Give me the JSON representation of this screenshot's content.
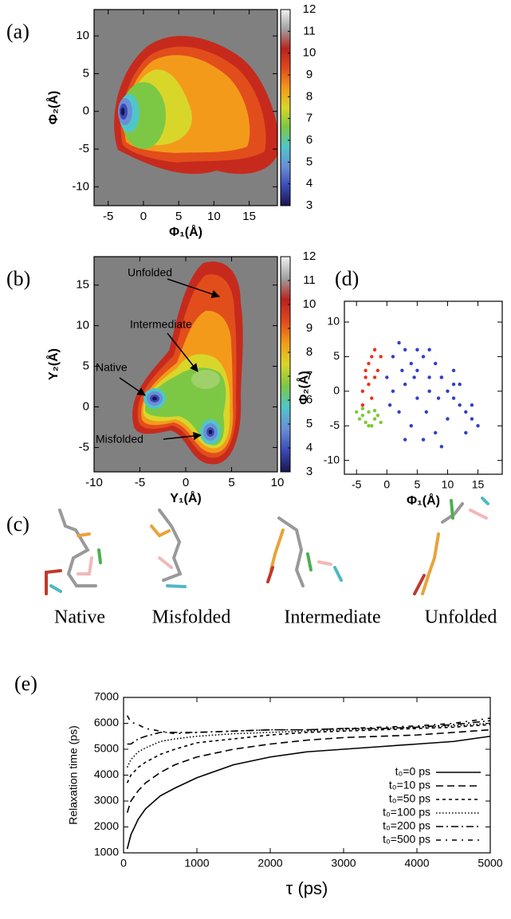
{
  "panel_labels": [
    "(a)",
    "(b)",
    "(c)",
    "(d)",
    "(e)"
  ],
  "structures": {
    "labels": [
      "Native",
      "Misfolded",
      "Intermediate",
      "Unfolded"
    ]
  },
  "chart_data": [
    {
      "type": "contour",
      "xlabel": "Φ₁(Å)",
      "ylabel": "Φ₂(Å)",
      "xlim": [
        -7,
        19
      ],
      "ylim": [
        -12.5,
        13.5
      ],
      "xticks": [
        -5,
        0,
        5,
        10,
        15
      ],
      "yticks": [
        -10,
        -5,
        0,
        5,
        10
      ],
      "background": "#808080",
      "colorbar": {
        "clim": [
          3,
          12
        ],
        "ticks": [
          3,
          4,
          5,
          6,
          7,
          8,
          9,
          10,
          11,
          12
        ],
        "colors": [
          "#1a1450",
          "#3b4bb5",
          "#6a8fd6",
          "#4fc6c9",
          "#7cc844",
          "#d9d62a",
          "#f39a1b",
          "#e04a1d",
          "#b8231e",
          "#a0a0a0",
          "#f2f2f2"
        ]
      }
    },
    {
      "type": "contour",
      "xlabel": "Y₁(Å)",
      "ylabel": "Y₂(Å)",
      "xlim": [
        -10,
        10
      ],
      "ylim": [
        -8,
        18.5
      ],
      "xticks": [
        -10,
        -5,
        0,
        5,
        10
      ],
      "yticks": [
        -5,
        0,
        5,
        10,
        15
      ],
      "background": "#808080",
      "annotations": [
        "Unfolded",
        "Intermediate",
        "Native",
        "Misfolded"
      ],
      "colorbar": {
        "clim": [
          3,
          12
        ],
        "ticks": [
          3,
          4,
          5,
          6,
          7,
          8,
          9,
          10,
          11,
          12
        ],
        "colors": [
          "#1a1450",
          "#3b4bb5",
          "#6a8fd6",
          "#4fc6c9",
          "#7cc844",
          "#d9d62a",
          "#f39a1b",
          "#e04a1d",
          "#b8231e",
          "#a0a0a0",
          "#f2f2f2"
        ]
      }
    },
    {
      "type": "scatter",
      "xlabel": "Φ₁(Å)",
      "ylabel": "Φ₂(Å)",
      "xlim": [
        -7,
        19
      ],
      "ylim": [
        -12,
        13
      ],
      "xticks": [
        -5,
        0,
        5,
        10,
        15
      ],
      "yticks": [
        -10,
        -5,
        0,
        5,
        10
      ],
      "series": [
        {
          "color": "#2f3fc8",
          "x": [
            0,
            1,
            2,
            3,
            4,
            5,
            6,
            7,
            8,
            9,
            10,
            11,
            12,
            13,
            14,
            15,
            2,
            4,
            6,
            8,
            10,
            1,
            3,
            5,
            7,
            9,
            11,
            0.5,
            2.5,
            4.5,
            6.5,
            8.5,
            12,
            14,
            3,
            5,
            7,
            9,
            11,
            13
          ],
          "y": [
            2,
            5,
            7,
            6,
            4,
            3,
            5,
            6,
            4,
            2,
            0,
            -1,
            -2,
            -3,
            -4,
            -5,
            -3,
            -5,
            -7,
            -6,
            -4,
            0,
            1,
            -1,
            0,
            2,
            1,
            -2,
            3,
            2,
            -3,
            -1,
            1,
            -2,
            -7,
            6,
            2,
            -8,
            3,
            -6
          ]
        },
        {
          "color": "#e8321e",
          "x": [
            -4,
            -3.5,
            -3,
            -2.5,
            -2,
            -1.5,
            -4,
            -3,
            -2,
            -1,
            -3.5,
            -2.5
          ],
          "y": [
            0,
            2,
            4,
            5,
            6,
            3,
            -2,
            1,
            2,
            5,
            3,
            -1
          ]
        },
        {
          "color": "#7cc835",
          "x": [
            -5,
            -4.5,
            -4,
            -3.5,
            -3,
            -2.5,
            -2,
            -1.5,
            -1,
            -4,
            -3,
            -2
          ],
          "y": [
            -3,
            -4,
            -3.5,
            -4.5,
            -3,
            -5,
            -4,
            -3.5,
            -4.5,
            -2.5,
            -5,
            -2.8
          ]
        }
      ]
    },
    {
      "type": "line",
      "xlabel": "τ (ps)",
      "ylabel": "Relaxation time (ps)",
      "xlim": [
        0,
        5000
      ],
      "ylim": [
        1000,
        7000
      ],
      "xticks": [
        0,
        1000,
        2000,
        3000,
        4000,
        5000
      ],
      "yticks": [
        1000,
        2000,
        3000,
        4000,
        5000,
        6000,
        7000
      ],
      "legend": "lower right",
      "x": [
        50,
        100,
        200,
        300,
        500,
        700,
        1000,
        1500,
        2000,
        2500,
        3000,
        3500,
        4000,
        4500,
        5000
      ],
      "series": [
        {
          "name": "t₀=0 ps",
          "color": "#000000",
          "style": "solid",
          "values": [
            1150,
            1700,
            2300,
            2700,
            3200,
            3500,
            3900,
            4400,
            4700,
            4900,
            5000,
            5100,
            5200,
            5300,
            5500
          ]
        },
        {
          "name": "t₀=10 ps",
          "color": "#000000",
          "style": "dashed",
          "values": [
            2550,
            3000,
            3400,
            3700,
            4100,
            4400,
            4700,
            5000,
            5200,
            5350,
            5450,
            5500,
            5550,
            5650,
            5750
          ]
        },
        {
          "name": "t₀=50 ps",
          "color": "#000000",
          "style": "short-dashed",
          "values": [
            3700,
            4000,
            4300,
            4500,
            4800,
            5000,
            5250,
            5400,
            5550,
            5650,
            5700,
            5750,
            5800,
            5850,
            5950
          ]
        },
        {
          "name": "t₀=100 ps",
          "color": "#000000",
          "style": "dotted",
          "values": [
            4300,
            4600,
            4900,
            5050,
            5300,
            5400,
            5500,
            5600,
            5650,
            5700,
            5750,
            5800,
            5850,
            5900,
            6000
          ]
        },
        {
          "name": "t₀=200 ps",
          "color": "#000000",
          "style": "dash-dot",
          "values": [
            5200,
            5200,
            5400,
            5500,
            5650,
            5650,
            5650,
            5700,
            5750,
            5750,
            5800,
            5800,
            5850,
            5950,
            6100
          ]
        },
        {
          "name": "t₀=500 ps",
          "color": "#000000",
          "style": "dash-dot-sparse",
          "values": [
            6300,
            6050,
            5950,
            5800,
            5700,
            5600,
            5650,
            5700,
            5750,
            5750,
            5800,
            5850,
            5900,
            6000,
            6200
          ]
        }
      ]
    }
  ]
}
